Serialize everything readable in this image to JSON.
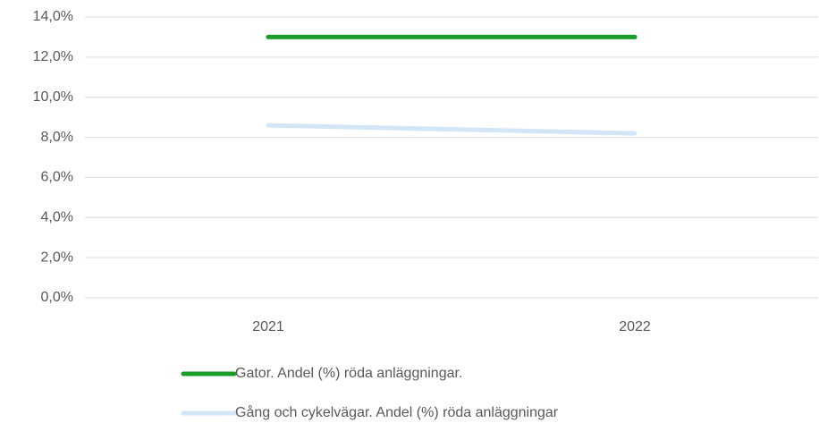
{
  "chart_data": {
    "type": "line",
    "categories": [
      "2021",
      "2022"
    ],
    "series": [
      {
        "name": "Gator. Andel (%) röda anläggningar.",
        "color": "#1a9c2a",
        "values": [
          13.0,
          13.0
        ]
      },
      {
        "name": "Gång och cykelvägar. Andel (%) röda anläggningar",
        "color": "#d2e6f8",
        "values": [
          8.6,
          8.2
        ]
      }
    ],
    "ylim": [
      0,
      14
    ],
    "yticks": [
      {
        "value": 0,
        "label": "0,0%"
      },
      {
        "value": 2,
        "label": "2,0%"
      },
      {
        "value": 4,
        "label": "4,0%"
      },
      {
        "value": 6,
        "label": "6,0%"
      },
      {
        "value": 8,
        "label": "8,0%"
      },
      {
        "value": 10,
        "label": "10,0%"
      },
      {
        "value": 12,
        "label": "12,0%"
      },
      {
        "value": 14,
        "label": "14,0%"
      }
    ],
    "grid": true,
    "legend": "bottom"
  }
}
